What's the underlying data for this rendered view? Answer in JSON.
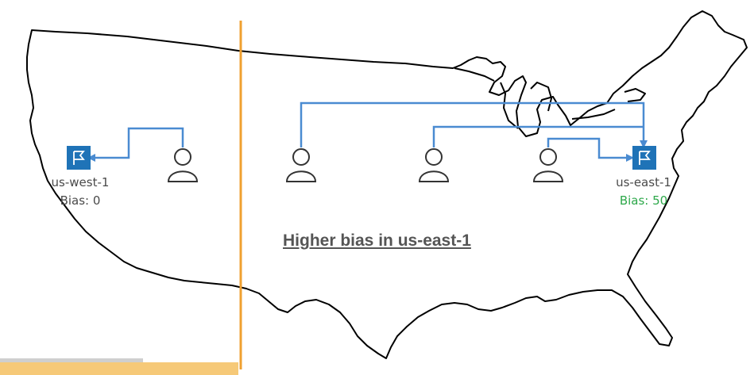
{
  "regions": {
    "west": {
      "name": "us-west-1",
      "bias": "Bias: 0"
    },
    "east": {
      "name": "us-east-1",
      "bias": "Bias: 50"
    }
  },
  "caption": "Higher bias in us-east-1",
  "icons": {
    "region": "flag-icon",
    "user": "user-icon"
  },
  "colors": {
    "routing_line": "#4a8bd1",
    "region_box": "#1f73b7",
    "divider": "#f0a030",
    "bias_high": "#2da84a",
    "map_outline": "#000000"
  }
}
